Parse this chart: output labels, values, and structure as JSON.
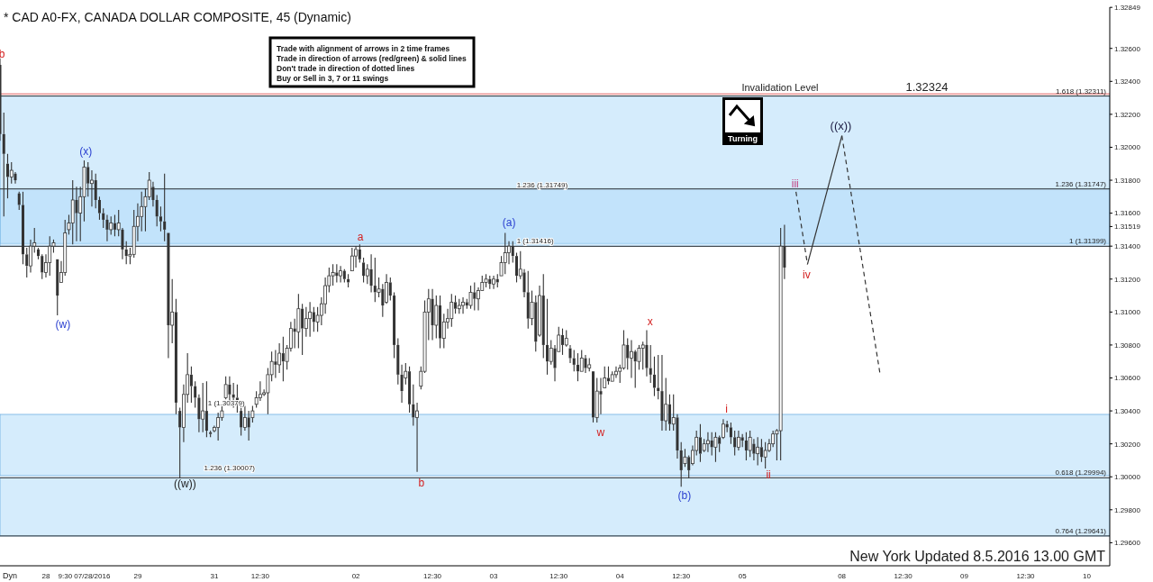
{
  "chart_data": {
    "type": "candlestick",
    "title": "* CAD A0-FX, CANADA DOLLAR COMPOSITE, 45 (Dynamic)",
    "color": "#333333",
    "categories": [
      null,
      null,
      null,
      null,
      null,
      null,
      null,
      null,
      null,
      null,
      null,
      null,
      "28",
      null,
      null,
      null,
      null,
      null,
      null,
      null,
      null,
      null,
      "9:30 07/28/2016",
      null,
      null,
      null,
      null,
      null,
      null,
      null,
      null,
      null,
      null,
      null,
      null,
      null,
      "29",
      null,
      null,
      null,
      null,
      null,
      null,
      null,
      null,
      null,
      null,
      null,
      null,
      null,
      null,
      null,
      null,
      null,
      null,
      null,
      "31",
      null,
      null,
      null,
      null,
      null,
      null,
      null,
      null,
      null,
      null,
      null,
      "12:30",
      null,
      null,
      null,
      null,
      null,
      null,
      null,
      null,
      null,
      null,
      null,
      null,
      null,
      null,
      null,
      null,
      null,
      null,
      null,
      null,
      null,
      null,
      null,
      null,
      "02",
      null,
      null,
      null,
      null,
      null,
      null,
      null,
      null,
      null,
      null,
      null,
      null,
      null,
      null,
      null,
      null,
      null,
      null,
      null,
      "12:30",
      null,
      null,
      null,
      null,
      null,
      null,
      null,
      null,
      null,
      null,
      null,
      null,
      null,
      null,
      null,
      "03",
      null,
      null,
      null,
      null,
      null,
      null,
      null,
      null,
      null,
      null,
      null,
      null,
      null,
      null,
      null,
      null,
      "12:30",
      null,
      null,
      null,
      null,
      null,
      null,
      null,
      null,
      null,
      null,
      null,
      null,
      null,
      null,
      null,
      "04",
      null,
      null,
      null,
      null,
      null,
      null,
      null,
      null,
      null,
      null,
      null,
      null,
      null,
      null,
      null,
      "12:30",
      null,
      null,
      null,
      null,
      null,
      null,
      null,
      null,
      null,
      null,
      null,
      null,
      null,
      null,
      null,
      "05",
      null,
      null,
      null,
      null,
      null,
      null,
      null,
      null,
      null,
      null,
      null,
      null,
      null,
      null,
      null,
      null,
      null,
      null,
      null,
      null,
      null,
      null,
      null,
      null,
      null,
      "08",
      null,
      null,
      null,
      null,
      null,
      null,
      null,
      null,
      null,
      null,
      null,
      null,
      null,
      null,
      null,
      "12:30",
      null,
      null,
      null,
      null,
      null,
      null,
      null,
      null,
      null,
      null,
      null,
      null,
      null,
      null,
      null,
      "09",
      null,
      null,
      null,
      null,
      null,
      null,
      null,
      null,
      null,
      null,
      null,
      null,
      null,
      null,
      null,
      "12:30",
      null,
      null,
      null,
      null,
      null,
      null,
      null,
      null,
      null,
      null,
      null,
      null,
      null,
      null,
      null,
      "10",
      null,
      null,
      null,
      null,
      null,
      null
    ],
    "ohlc": [
      [
        1.325,
        1.3254,
        1.3204,
        1.3208
      ],
      [
        1.3208,
        1.3221,
        1.3158,
        1.3196
      ],
      [
        1.319,
        1.3196,
        1.3169,
        1.3182
      ],
      [
        1.3182,
        1.3191,
        1.3178,
        1.3186
      ],
      [
        1.3184,
        1.3185,
        1.3178,
        1.318
      ],
      [
        1.3172,
        1.3173,
        1.3162,
        1.3165
      ],
      [
        1.3165,
        1.3173,
        1.3129,
        1.3135
      ],
      [
        1.3135,
        1.3139,
        1.3121,
        1.3128
      ],
      [
        1.3128,
        1.3144,
        1.3124,
        1.314
      ],
      [
        1.314,
        1.3151,
        1.3136,
        1.3142
      ],
      [
        1.3138,
        1.3139,
        1.3132,
        1.3134
      ],
      [
        1.3134,
        1.3135,
        1.312,
        1.3124
      ],
      [
        1.3124,
        1.3135,
        1.3121,
        1.313
      ],
      [
        1.313,
        1.3146,
        1.3122,
        1.314
      ],
      [
        1.314,
        1.3144,
        1.3136,
        1.3142
      ],
      [
        1.3132,
        1.3132,
        1.3098,
        1.311
      ],
      [
        1.3118,
        1.3131,
        1.3118,
        1.3124
      ],
      [
        1.3124,
        1.3156,
        1.3122,
        1.3148
      ],
      [
        1.315,
        1.3159,
        1.3147,
        1.3154
      ],
      [
        1.3154,
        1.318,
        1.3141,
        1.3168
      ],
      [
        1.3168,
        1.3176,
        1.3143,
        1.316
      ],
      [
        1.316,
        1.3176,
        1.3143,
        1.317
      ],
      [
        1.317,
        1.3192,
        1.3155,
        1.3188
      ],
      [
        1.3188,
        1.3191,
        1.317,
        1.3178
      ],
      [
        1.3178,
        1.3186,
        1.3164,
        1.318
      ],
      [
        1.318,
        1.3184,
        1.3163,
        1.3168
      ],
      [
        1.3168,
        1.317,
        1.3156,
        1.316
      ],
      [
        1.316,
        1.3163,
        1.3151,
        1.3156
      ],
      [
        1.3156,
        1.3159,
        1.3143,
        1.315
      ],
      [
        1.315,
        1.3158,
        1.3147,
        1.3154
      ],
      [
        1.3154,
        1.3159,
        1.3146,
        1.315
      ],
      [
        1.315,
        1.3162,
        1.3146,
        1.3154
      ],
      [
        1.315,
        1.3151,
        1.3132,
        1.3138
      ],
      [
        1.3138,
        1.3143,
        1.3129,
        1.3134
      ],
      [
        1.3134,
        1.3139,
        1.3129,
        1.3135
      ],
      [
        1.3135,
        1.3162,
        1.3133,
        1.3152
      ],
      [
        1.3152,
        1.3166,
        1.3143,
        1.3158
      ],
      [
        1.3158,
        1.3173,
        1.3149,
        1.3164
      ],
      [
        1.3164,
        1.3175,
        1.3149,
        1.317
      ],
      [
        1.317,
        1.3185,
        1.3168,
        1.318
      ],
      [
        1.3176,
        1.3179,
        1.3164,
        1.3168
      ],
      [
        1.3168,
        1.3171,
        1.3152,
        1.3158
      ],
      [
        1.3158,
        1.3164,
        1.3149,
        1.3155
      ],
      [
        1.3155,
        1.3184,
        1.3143,
        1.315
      ],
      [
        1.3148,
        1.3148,
        1.3072,
        1.3092
      ],
      [
        1.3092,
        1.312,
        1.3081,
        1.31
      ],
      [
        1.31,
        1.3108,
        1.3038,
        1.3045
      ],
      [
        1.304,
        1.3042,
        1.2999,
        1.303
      ],
      [
        1.303,
        1.3056,
        1.3021,
        1.305
      ],
      [
        1.305,
        1.3075,
        1.3045,
        1.3062
      ],
      [
        1.3062,
        1.3067,
        1.3045,
        1.3055
      ],
      [
        1.3055,
        1.3058,
        1.3042,
        1.3048
      ],
      [
        1.3048,
        1.305,
        1.3027,
        1.3035
      ],
      [
        1.3035,
        1.3057,
        1.3027,
        1.304
      ],
      [
        1.304,
        1.3058,
        1.3024,
        1.3028
      ],
      [
        1.3027,
        1.3028,
        1.3024,
        1.3026
      ],
      [
        1.3028,
        1.3031,
        1.3027,
        1.303
      ],
      [
        1.303,
        1.3039,
        1.3022,
        1.3036
      ],
      [
        1.3036,
        1.3043,
        1.3034,
        1.304
      ],
      [
        1.3048,
        1.3061,
        1.3047,
        1.3056
      ],
      [
        1.3056,
        1.3061,
        1.3043,
        1.305
      ],
      [
        1.305,
        1.3057,
        1.3042,
        1.3048
      ],
      [
        1.3048,
        1.3056,
        1.3039,
        1.3044
      ],
      [
        1.304,
        1.3043,
        1.3025,
        1.303
      ],
      [
        1.303,
        1.3043,
        1.3028,
        1.3036
      ],
      [
        1.3036,
        1.304,
        1.3022,
        1.303
      ],
      [
        1.3036,
        1.3043,
        1.3033,
        1.304
      ],
      [
        1.3044,
        1.3052,
        1.3042,
        1.3048
      ],
      [
        1.3048,
        1.3058,
        1.3046,
        1.305
      ],
      [
        1.305,
        1.3053,
        1.3049,
        1.3051
      ],
      [
        1.3051,
        1.3066,
        1.3038,
        1.3062
      ],
      [
        1.3062,
        1.3076,
        1.3058,
        1.307
      ],
      [
        1.307,
        1.3077,
        1.306,
        1.3068
      ],
      [
        1.3068,
        1.3081,
        1.3063,
        1.3075
      ],
      [
        1.3075,
        1.3085,
        1.3058,
        1.307
      ],
      [
        1.307,
        1.308,
        1.3065,
        1.3078
      ],
      [
        1.3078,
        1.3094,
        1.3076,
        1.309
      ],
      [
        1.309,
        1.3096,
        1.3078,
        1.3088
      ],
      [
        1.3088,
        1.3111,
        1.3078,
        1.3102
      ],
      [
        1.3102,
        1.3105,
        1.3074,
        1.309
      ],
      [
        1.309,
        1.3103,
        1.3085,
        1.3096
      ],
      [
        1.3096,
        1.3106,
        1.3085,
        1.31
      ],
      [
        1.31,
        1.3103,
        1.3088,
        1.3094
      ],
      [
        1.3094,
        1.3103,
        1.3088,
        1.3098
      ],
      [
        1.3098,
        1.3109,
        1.3092,
        1.3105
      ],
      [
        1.3105,
        1.3121,
        1.3099,
        1.3116
      ],
      [
        1.3116,
        1.3127,
        1.3112,
        1.3122
      ],
      [
        1.3122,
        1.3129,
        1.3116,
        1.3124
      ],
      [
        1.3124,
        1.3129,
        1.3118,
        1.3122
      ],
      [
        1.3122,
        1.3128,
        1.3118,
        1.3125
      ],
      [
        1.3125,
        1.3126,
        1.3118,
        1.312
      ],
      [
        1.312,
        1.3123,
        1.3115,
        1.3118
      ],
      [
        1.3125,
        1.3139,
        1.3125,
        1.3134
      ],
      [
        1.3134,
        1.314,
        1.3127,
        1.3138
      ],
      [
        1.3138,
        1.3141,
        1.313,
        1.3132
      ],
      [
        1.313,
        1.3133,
        1.3118,
        1.3122
      ],
      [
        1.3122,
        1.3129,
        1.3117,
        1.3126
      ],
      [
        1.3126,
        1.3135,
        1.3112,
        1.3116
      ],
      [
        1.3116,
        1.3133,
        1.3106,
        1.3112
      ],
      [
        1.3112,
        1.3121,
        1.3109,
        1.3114
      ],
      [
        1.3114,
        1.3117,
        1.3097,
        1.3104
      ],
      [
        1.3106,
        1.3123,
        1.3105,
        1.3118
      ],
      [
        1.3118,
        1.3121,
        1.3107,
        1.311
      ],
      [
        1.311,
        1.3112,
        1.3072,
        1.308
      ],
      [
        1.308,
        1.3084,
        1.3056,
        1.3062
      ],
      [
        1.3062,
        1.3068,
        1.3045,
        1.3052
      ],
      [
        1.306,
        1.3069,
        1.3056,
        1.3064
      ],
      [
        1.3064,
        1.3067,
        1.3039,
        1.3044
      ],
      [
        1.3044,
        1.3056,
        1.3031,
        1.3036
      ],
      [
        1.3036,
        1.3045,
        1.3003,
        1.304
      ],
      [
        1.3055,
        1.3067,
        1.3053,
        1.3064
      ],
      [
        1.3064,
        1.3107,
        1.3063,
        1.31
      ],
      [
        1.31,
        1.3114,
        1.3083,
        1.3108
      ],
      [
        1.3108,
        1.3114,
        1.3083,
        1.3092
      ],
      [
        1.3092,
        1.311,
        1.3084,
        1.3104
      ],
      [
        1.3104,
        1.311,
        1.3078,
        1.3084
      ],
      [
        1.3084,
        1.3099,
        1.3078,
        1.3094
      ],
      [
        1.3094,
        1.3102,
        1.309,
        1.3096
      ],
      [
        1.3096,
        1.3111,
        1.3091,
        1.3106
      ],
      [
        1.3106,
        1.311,
        1.3099,
        1.3102
      ],
      [
        1.3102,
        1.3108,
        1.3099,
        1.3104
      ],
      [
        1.3104,
        1.3109,
        1.3099,
        1.3106
      ],
      [
        1.3106,
        1.3108,
        1.3102,
        1.3104
      ],
      [
        1.3104,
        1.3116,
        1.3102,
        1.3112
      ],
      [
        1.3112,
        1.3118,
        1.3101,
        1.3108
      ],
      [
        1.3108,
        1.3115,
        1.3101,
        1.3113
      ],
      [
        1.3113,
        1.3122,
        1.3113,
        1.3118
      ],
      [
        1.3118,
        1.3123,
        1.3115,
        1.312
      ],
      [
        1.312,
        1.3122,
        1.3114,
        1.3117
      ],
      [
        1.3117,
        1.3122,
        1.3114,
        1.312
      ],
      [
        1.312,
        1.3123,
        1.3115,
        1.3118
      ],
      [
        1.3122,
        1.3134,
        1.3122,
        1.313
      ],
      [
        1.313,
        1.3148,
        1.3123,
        1.3136
      ],
      [
        1.3136,
        1.3143,
        1.3129,
        1.314
      ],
      [
        1.314,
        1.3143,
        1.313,
        1.3134
      ],
      [
        1.3134,
        1.3136,
        1.3118,
        1.3122
      ],
      [
        1.3122,
        1.3137,
        1.312,
        1.3126
      ],
      [
        1.3124,
        1.3126,
        1.3109,
        1.3112
      ],
      [
        1.3112,
        1.3125,
        1.309,
        1.3096
      ],
      [
        1.3096,
        1.3113,
        1.3092,
        1.3106
      ],
      [
        1.3106,
        1.311,
        1.3076,
        1.3082
      ],
      [
        1.3086,
        1.3116,
        1.3085,
        1.311
      ],
      [
        1.311,
        1.3123,
        1.3072,
        1.308
      ],
      [
        1.308,
        1.3108,
        1.3062,
        1.307
      ],
      [
        1.307,
        1.3083,
        1.3068,
        1.3078
      ],
      [
        1.3078,
        1.308,
        1.3058,
        1.3066
      ],
      [
        1.3076,
        1.3091,
        1.3076,
        1.3086
      ],
      [
        1.3086,
        1.309,
        1.3074,
        1.308
      ],
      [
        1.308,
        1.3089,
        1.3079,
        1.3084
      ],
      [
        1.3078,
        1.308,
        1.3069,
        1.3072
      ],
      [
        1.3072,
        1.3077,
        1.3064,
        1.3068
      ],
      [
        1.3068,
        1.3075,
        1.3058,
        1.3064
      ],
      [
        1.3064,
        1.3077,
        1.3064,
        1.3072
      ],
      [
        1.3072,
        1.3074,
        1.3063,
        1.3066
      ],
      [
        1.3066,
        1.3072,
        1.3064,
        1.3068
      ],
      [
        1.3064,
        1.3064,
        1.3033,
        1.3036
      ],
      [
        1.3036,
        1.306,
        1.3033,
        1.3052
      ],
      [
        1.3052,
        1.306,
        1.3038,
        1.305
      ],
      [
        1.3054,
        1.3067,
        1.3054,
        1.306
      ],
      [
        1.306,
        1.3067,
        1.3056,
        1.3058
      ],
      [
        1.3058,
        1.3064,
        1.3058,
        1.3062
      ],
      [
        1.3062,
        1.3067,
        1.306,
        1.3064
      ],
      [
        1.3064,
        1.3068,
        1.3057,
        1.3066
      ],
      [
        1.3066,
        1.3089,
        1.3065,
        1.308
      ],
      [
        1.308,
        1.3084,
        1.3065,
        1.3072
      ],
      [
        1.3072,
        1.3083,
        1.306,
        1.3076
      ],
      [
        1.3076,
        1.3077,
        1.3054,
        1.307
      ],
      [
        1.307,
        1.308,
        1.3065,
        1.3078
      ],
      [
        1.3078,
        1.3082,
        1.3065,
        1.308
      ],
      [
        1.308,
        1.3089,
        1.3061,
        1.3066
      ],
      [
        1.3066,
        1.308,
        1.3057,
        1.3062
      ],
      [
        1.3062,
        1.3073,
        1.3049,
        1.3054
      ],
      [
        1.3054,
        1.3074,
        1.3047,
        1.3052
      ],
      [
        1.3052,
        1.3074,
        1.3028,
        1.3034
      ],
      [
        1.3034,
        1.306,
        1.3028,
        1.3044
      ],
      [
        1.3044,
        1.305,
        1.3028,
        1.3032
      ],
      [
        1.3032,
        1.305,
        1.3028,
        1.3036
      ],
      [
        1.3036,
        1.3038,
        1.3011,
        1.3016
      ],
      [
        1.3016,
        1.3021,
        1.2994,
        1.3004
      ],
      [
        1.3008,
        1.3017,
        1.3006,
        1.3012
      ],
      [
        1.3012,
        1.3013,
        1.2999,
        1.3004
      ],
      [
        1.3008,
        1.3019,
        1.3007,
        1.3016
      ],
      [
        1.3016,
        1.3028,
        1.3013,
        1.3024
      ],
      [
        1.3024,
        1.3032,
        1.3009,
        1.3014
      ],
      [
        1.3016,
        1.3023,
        1.3015,
        1.302
      ],
      [
        1.302,
        1.3027,
        1.3015,
        1.3022
      ],
      [
        1.3022,
        1.3027,
        1.3013,
        1.3018
      ],
      [
        1.3018,
        1.3027,
        1.3009,
        1.3024
      ],
      [
        1.3024,
        1.3025,
        1.3015,
        1.302
      ],
      [
        1.3024,
        1.3035,
        1.3023,
        1.3032
      ],
      [
        1.3032,
        1.3034,
        1.3027,
        1.303
      ],
      [
        1.303,
        1.3033,
        1.302,
        1.3024
      ],
      [
        1.3024,
        1.3028,
        1.3013,
        1.3018
      ],
      [
        1.3018,
        1.3028,
        1.3016,
        1.3024
      ],
      [
        1.3024,
        1.3026,
        1.3018,
        1.3022
      ],
      [
        1.3022,
        1.3027,
        1.301,
        1.3016
      ],
      [
        1.3016,
        1.3028,
        1.3012,
        1.3024
      ],
      [
        1.302,
        1.3023,
        1.301,
        1.3014
      ],
      [
        1.3014,
        1.3024,
        1.3007,
        1.3018
      ],
      [
        1.3018,
        1.3023,
        1.3009,
        1.3012
      ],
      [
        1.3012,
        1.3021,
        1.3005,
        1.3016
      ],
      [
        1.3016,
        1.3023,
        1.3015,
        1.302
      ],
      [
        1.302,
        1.3028,
        1.3018,
        1.3026
      ],
      [
        1.3026,
        1.3029,
        1.301,
        1.3028
      ],
      [
        1.3028,
        1.3151,
        1.301,
        1.314
      ],
      [
        1.314,
        1.3153,
        1.312,
        1.3127
      ],
      null,
      null,
      null,
      null,
      null,
      null,
      null,
      null,
      null,
      null,
      null,
      null,
      null,
      null,
      null,
      null,
      null,
      null,
      null,
      null,
      null,
      null,
      null,
      null,
      null,
      null,
      null,
      null,
      null,
      null,
      null,
      null,
      null,
      null,
      null,
      null,
      null,
      null,
      null,
      null,
      null,
      null,
      null,
      null,
      null,
      null,
      null,
      null,
      null,
      null,
      null,
      null,
      null,
      null,
      null,
      null,
      null,
      null,
      null,
      null,
      null,
      null,
      null,
      null,
      null,
      null,
      null,
      null,
      null,
      null,
      null,
      null,
      null,
      null,
      null,
      null,
      null,
      null,
      null,
      null,
      null,
      null,
      null,
      null,
      null
    ],
    "series": [
      {
        "type": "line",
        "color": "#333333",
        "line_style": "dashed",
        "values": [
          null,
          null,
          null,
          null,
          null,
          null,
          null,
          null,
          null,
          null,
          null,
          null,
          null,
          null,
          null,
          null,
          null,
          null,
          null,
          null,
          null,
          null,
          null,
          null,
          null,
          null,
          null,
          null,
          null,
          null,
          null,
          null,
          null,
          null,
          null,
          null,
          null,
          null,
          null,
          null,
          null,
          null,
          null,
          null,
          null,
          null,
          null,
          null,
          null,
          null,
          null,
          null,
          null,
          null,
          null,
          null,
          null,
          null,
          null,
          null,
          null,
          null,
          null,
          null,
          null,
          null,
          null,
          null,
          null,
          null,
          null,
          null,
          null,
          null,
          null,
          null,
          null,
          null,
          null,
          null,
          null,
          null,
          null,
          null,
          null,
          null,
          null,
          null,
          null,
          null,
          null,
          null,
          null,
          null,
          null,
          null,
          null,
          null,
          null,
          null,
          null,
          null,
          null,
          null,
          null,
          null,
          null,
          null,
          null,
          null,
          null,
          null,
          null,
          null,
          null,
          null,
          null,
          null,
          null,
          null,
          null,
          null,
          null,
          null,
          null,
          null,
          null,
          null,
          null,
          null,
          null,
          null,
          null,
          null,
          null,
          null,
          null,
          null,
          null,
          null,
          null,
          null,
          null,
          null,
          null,
          null,
          null,
          null,
          null,
          null,
          null,
          null,
          null,
          null,
          null,
          null,
          null,
          null,
          null,
          null,
          null,
          null,
          null,
          null,
          null,
          null,
          null,
          null,
          null,
          null,
          null,
          null,
          null,
          null,
          null,
          null,
          null,
          null,
          null,
          null,
          null,
          null,
          null,
          null,
          null,
          null,
          null,
          null,
          null,
          null,
          null,
          null,
          null,
          null,
          null,
          null,
          null,
          null,
          null,
          null,
          null,
          null,
          null,
          null,
          null,
          null,
          null,
          null,
          1.3173,
          null,
          null,
          1.3129,
          null,
          null,
          null,
          null,
          null,
          null,
          null,
          null,
          null,
          null,
          null,
          null,
          null,
          null,
          null,
          null,
          null,
          null,
          null,
          null,
          null,
          null,
          null,
          null,
          null,
          null,
          null,
          null,
          null,
          null,
          null,
          null,
          null,
          null,
          null,
          null,
          null,
          null,
          null,
          null,
          null,
          null,
          null,
          null,
          null,
          null,
          null,
          null,
          null,
          null,
          null,
          null,
          null,
          null,
          null,
          null,
          null,
          null,
          null,
          null,
          null,
          null,
          null,
          null,
          null,
          null,
          null,
          null,
          null,
          null,
          null,
          null,
          null,
          null,
          null,
          null,
          null,
          null,
          null
        ]
      },
      {
        "type": "line",
        "color": "#333333",
        "line_style": "solid",
        "values": [
          null,
          null,
          null,
          null,
          null,
          null,
          null,
          null,
          null,
          null,
          null,
          null,
          null,
          null,
          null,
          null,
          null,
          null,
          null,
          null,
          null,
          null,
          null,
          null,
          null,
          null,
          null,
          null,
          null,
          null,
          null,
          null,
          null,
          null,
          null,
          null,
          null,
          null,
          null,
          null,
          null,
          null,
          null,
          null,
          null,
          null,
          null,
          null,
          null,
          null,
          null,
          null,
          null,
          null,
          null,
          null,
          null,
          null,
          null,
          null,
          null,
          null,
          null,
          null,
          null,
          null,
          null,
          null,
          null,
          null,
          null,
          null,
          null,
          null,
          null,
          null,
          null,
          null,
          null,
          null,
          null,
          null,
          null,
          null,
          null,
          null,
          null,
          null,
          null,
          null,
          null,
          null,
          null,
          null,
          null,
          null,
          null,
          null,
          null,
          null,
          null,
          null,
          null,
          null,
          null,
          null,
          null,
          null,
          null,
          null,
          null,
          null,
          null,
          null,
          null,
          null,
          null,
          null,
          null,
          null,
          null,
          null,
          null,
          null,
          null,
          null,
          null,
          null,
          null,
          null,
          null,
          null,
          null,
          null,
          null,
          null,
          null,
          null,
          null,
          null,
          null,
          null,
          null,
          null,
          null,
          null,
          null,
          null,
          null,
          null,
          null,
          null,
          null,
          null,
          null,
          null,
          null,
          null,
          null,
          null,
          null,
          null,
          null,
          null,
          null,
          null,
          null,
          null,
          null,
          null,
          null,
          null,
          null,
          null,
          null,
          null,
          null,
          null,
          null,
          null,
          null,
          null,
          null,
          null,
          null,
          null,
          null,
          null,
          null,
          null,
          null,
          null,
          null,
          null,
          null,
          null,
          null,
          null,
          null,
          null,
          null,
          null,
          null,
          null,
          null,
          null,
          null,
          null,
          null,
          null,
          null,
          1.3129,
          null,
          null,
          null,
          null,
          null,
          null,
          null,
          null,
          1.3207,
          null,
          null,
          null,
          null,
          null,
          null,
          null,
          null,
          null,
          null,
          null,
          null,
          null,
          null,
          null,
          null,
          null,
          null,
          null,
          null,
          null,
          null,
          null,
          null,
          null,
          null,
          null,
          null,
          null,
          null,
          null,
          null,
          null,
          null,
          null,
          null,
          null,
          null,
          null,
          null,
          null,
          null,
          null,
          null,
          null,
          null,
          null,
          null,
          null,
          null,
          null,
          null,
          null,
          null,
          null,
          null,
          null,
          null,
          null,
          null,
          null,
          null,
          null,
          null,
          null,
          null,
          null,
          null,
          null,
          null
        ]
      },
      {
        "type": "line",
        "color": "#333333",
        "line_style": "dashed",
        "values": [
          null,
          null,
          null,
          null,
          null,
          null,
          null,
          null,
          null,
          null,
          null,
          null,
          null,
          null,
          null,
          null,
          null,
          null,
          null,
          null,
          null,
          null,
          null,
          null,
          null,
          null,
          null,
          null,
          null,
          null,
          null,
          null,
          null,
          null,
          null,
          null,
          null,
          null,
          null,
          null,
          null,
          null,
          null,
          null,
          null,
          null,
          null,
          null,
          null,
          null,
          null,
          null,
          null,
          null,
          null,
          null,
          null,
          null,
          null,
          null,
          null,
          null,
          null,
          null,
          null,
          null,
          null,
          null,
          null,
          null,
          null,
          null,
          null,
          null,
          null,
          null,
          null,
          null,
          null,
          null,
          null,
          null,
          null,
          null,
          null,
          null,
          null,
          null,
          null,
          null,
          null,
          null,
          null,
          null,
          null,
          null,
          null,
          null,
          null,
          null,
          null,
          null,
          null,
          null,
          null,
          null,
          null,
          null,
          null,
          null,
          null,
          null,
          null,
          null,
          null,
          null,
          null,
          null,
          null,
          null,
          null,
          null,
          null,
          null,
          null,
          null,
          null,
          null,
          null,
          null,
          null,
          null,
          null,
          null,
          null,
          null,
          null,
          null,
          null,
          null,
          null,
          null,
          null,
          null,
          null,
          null,
          null,
          null,
          null,
          null,
          null,
          null,
          null,
          null,
          null,
          null,
          null,
          null,
          null,
          null,
          null,
          null,
          null,
          null,
          null,
          null,
          null,
          null,
          null,
          null,
          null,
          null,
          null,
          null,
          null,
          null,
          null,
          null,
          null,
          null,
          null,
          null,
          null,
          null,
          null,
          null,
          null,
          null,
          null,
          null,
          null,
          null,
          null,
          null,
          null,
          null,
          null,
          null,
          null,
          null,
          null,
          null,
          null,
          null,
          null,
          null,
          null,
          null,
          null,
          null,
          null,
          null,
          null,
          null,
          null,
          null,
          null,
          null,
          null,
          null,
          1.3207,
          null,
          null,
          null,
          null,
          null,
          null,
          null,
          null,
          null,
          1.3062,
          null,
          null,
          null,
          null,
          null,
          null,
          null,
          null,
          null,
          null,
          null,
          null,
          null,
          null,
          null,
          null,
          null,
          null,
          null,
          null,
          null,
          null,
          null,
          null,
          null,
          null,
          null,
          null,
          null,
          null,
          null,
          null,
          null,
          null,
          null,
          null,
          null,
          null,
          null,
          null,
          null,
          null,
          null,
          null,
          null,
          null,
          null,
          null,
          null,
          null,
          null,
          null,
          null,
          null,
          null,
          null,
          null,
          null,
          null,
          null
        ]
      }
    ],
    "ylim": [
      1.2946,
      1.3285
    ],
    "yticks": [
      {
        "value": 1.296,
        "label": "1.29600"
      },
      {
        "value": 1.298,
        "label": "1.29800"
      },
      {
        "value": 1.3,
        "label": "1.30000"
      },
      {
        "value": 1.302,
        "label": "1.30200"
      },
      {
        "value": 1.304,
        "label": "1.30400"
      },
      {
        "value": 1.306,
        "label": "1.30600"
      },
      {
        "value": 1.308,
        "label": "1.30800"
      },
      {
        "value": 1.31,
        "label": "1.31000"
      },
      {
        "value": 1.312,
        "label": "1.31200"
      },
      {
        "value": 1.314,
        "label": "1.31400"
      },
      {
        "value": 1.31519,
        "label": "1.31519"
      },
      {
        "value": 1.316,
        "label": "1.31600"
      },
      {
        "value": 1.318,
        "label": "1.31800"
      },
      {
        "value": 1.32,
        "label": "1.32000"
      },
      {
        "value": 1.322,
        "label": "1.32200"
      },
      {
        "value": 1.324,
        "label": "1.32400"
      },
      {
        "value": 1.326,
        "label": "1.32600"
      },
      {
        "value": 1.32849,
        "label": "1.32849"
      }
    ],
    "bands": [
      {
        "axis": "y",
        "from": 1.30007,
        "to": 1.30379,
        "color": "#b3dcf9"
      },
      {
        "axis": "y",
        "from": 1.31416,
        "to": 1.31749,
        "color": "#b3dcf9"
      },
      {
        "axis": "y",
        "from": 1.31399,
        "to": 1.32311,
        "color": "#b3dcf9"
      },
      {
        "axis": "y",
        "from": 1.29641,
        "to": 1.29994,
        "color": "#b3dcf9"
      }
    ],
    "ref_lines": [
      {
        "axis": "y",
        "value": 1.32324,
        "label": null,
        "color": "#e06060"
      },
      {
        "axis": "y",
        "value": 1.32311,
        "label": "1.618 (1.32311)",
        "color": "#333333"
      },
      {
        "axis": "y",
        "value": 1.31747,
        "label": "1.236 (1.31747)",
        "color": "#333333"
      },
      {
        "axis": "y",
        "value": 1.31399,
        "label": "1 (1.31399)",
        "color": "#333333"
      },
      {
        "axis": "y",
        "value": 1.29994,
        "label": "0.618 (1.29994)",
        "color": "#333333"
      },
      {
        "axis": "y",
        "value": 1.29641,
        "label": "0.764 (1.29641)",
        "color": "#333333"
      }
    ],
    "annotations": [
      "Trade with alignment of arrows in 2 time frames",
      "Trade in direction of arrows (red/green) & solid lines",
      "Don't trade in direction of dotted lines",
      "Buy or Sell in 3, 7 or 11 swings",
      "Turning",
      "New York Updated 8.5.2016 13.00 GMT",
      "Dyn",
      "b",
      "(x)",
      "(w)",
      "((w))",
      "a",
      "b",
      "(a)",
      "w",
      "x",
      "(b)",
      "i",
      "ii",
      "iii",
      "iv",
      "((x))",
      "1 (1.30379)",
      "1.236 (1.30007)",
      "1.236 (1.31749)",
      "1 (1.31416)",
      "Invalidation Level",
      "1.32324"
    ]
  }
}
